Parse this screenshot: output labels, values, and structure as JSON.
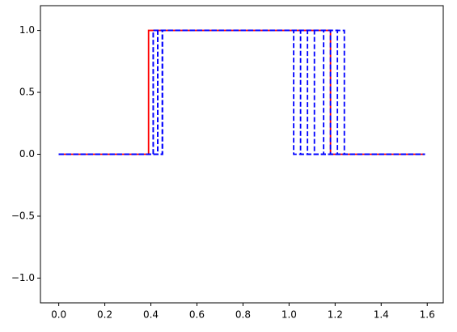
{
  "chart_data": {
    "type": "line",
    "xlim": [
      -0.0795,
      1.6695
    ],
    "ylim": [
      -1.2,
      1.2
    ],
    "xticks": [
      {
        "value": 0,
        "label": "0.0"
      },
      {
        "value": 0.2,
        "label": "0.2"
      },
      {
        "value": 0.4,
        "label": "0.4"
      },
      {
        "value": 0.6,
        "label": "0.6"
      },
      {
        "value": 0.8,
        "label": "0.8"
      },
      {
        "value": 1.0,
        "label": "1.0"
      },
      {
        "value": 1.2,
        "label": "1.2"
      },
      {
        "value": 1.4,
        "label": "1.4"
      },
      {
        "value": 1.6,
        "label": "1.6"
      }
    ],
    "yticks": [
      {
        "value": -1.0,
        "label": "−1.0"
      },
      {
        "value": -0.5,
        "label": "−0.5"
      },
      {
        "value": 0,
        "label": "0.0"
      },
      {
        "value": 0.5,
        "label": "0.5"
      },
      {
        "value": 1.0,
        "label": "1.0"
      }
    ],
    "series": [
      {
        "color": "#ff0000",
        "dashed": false,
        "x": [
          0,
          0.39,
          0.39,
          1.18,
          1.18,
          1.59
        ],
        "values": [
          0,
          0,
          1,
          1,
          0,
          0
        ]
      },
      {
        "color": "#0000ff",
        "dashed": true,
        "x": [
          0,
          0.41,
          0.41,
          1.02,
          1.02,
          1.59
        ],
        "values": [
          0,
          0,
          1,
          1,
          0,
          0
        ]
      },
      {
        "color": "#0000ff",
        "dashed": true,
        "x": [
          0,
          0.43,
          0.43,
          1.05,
          1.05,
          1.59
        ],
        "values": [
          0,
          0,
          1,
          1,
          0,
          0
        ]
      },
      {
        "color": "#0000ff",
        "dashed": true,
        "x": [
          0,
          0.45,
          0.45,
          1.08,
          1.08,
          1.59
        ],
        "values": [
          0,
          0,
          1,
          1,
          0,
          0
        ]
      },
      {
        "color": "#0000ff",
        "dashed": true,
        "x": [
          0,
          0.41,
          0.41,
          1.11,
          1.11,
          1.59
        ],
        "values": [
          0,
          0,
          1,
          1,
          0,
          0
        ]
      },
      {
        "color": "#0000ff",
        "dashed": true,
        "x": [
          0,
          0.43,
          0.43,
          1.15,
          1.15,
          1.59
        ],
        "values": [
          0,
          0,
          1,
          1,
          0,
          0
        ]
      },
      {
        "color": "#0000ff",
        "dashed": true,
        "x": [
          0,
          0.45,
          0.45,
          1.18,
          1.18,
          1.59
        ],
        "values": [
          0,
          0,
          1,
          1,
          0,
          0
        ]
      },
      {
        "color": "#0000ff",
        "dashed": true,
        "x": [
          0,
          0.43,
          0.43,
          1.21,
          1.21,
          1.59
        ],
        "values": [
          0,
          0,
          1,
          1,
          0,
          0
        ]
      },
      {
        "color": "#0000ff",
        "dashed": true,
        "x": [
          0,
          0.45,
          0.45,
          1.24,
          1.24,
          1.59
        ],
        "values": [
          0,
          0,
          1,
          1,
          0,
          0
        ]
      }
    ]
  }
}
